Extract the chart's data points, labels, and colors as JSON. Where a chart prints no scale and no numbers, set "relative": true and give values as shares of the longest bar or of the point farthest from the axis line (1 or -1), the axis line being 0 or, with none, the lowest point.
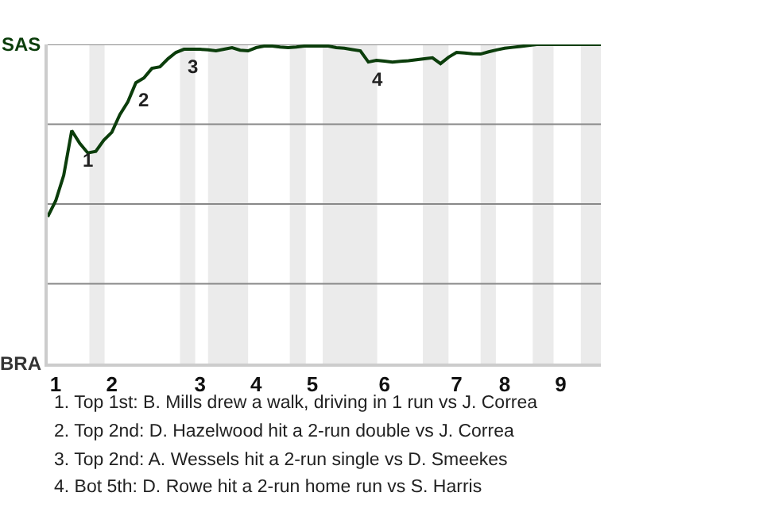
{
  "chart_data": {
    "type": "line",
    "relative": true,
    "categories": [
      null,
      "1",
      null,
      null,
      null,
      null,
      null,
      null,
      "2",
      null,
      null,
      null,
      null,
      null,
      null,
      null,
      null,
      null,
      null,
      "3",
      null,
      null,
      null,
      null,
      null,
      null,
      "4",
      null,
      null,
      null,
      null,
      null,
      null,
      "5",
      null,
      null,
      null,
      null,
      null,
      null,
      null,
      null,
      "6",
      null,
      null,
      null,
      null,
      null,
      null,
      null,
      null,
      "7",
      null,
      null,
      null,
      null,
      null,
      "8",
      null,
      null,
      null,
      null,
      null,
      null,
      "9",
      null,
      null,
      null,
      null,
      null
    ],
    "series": [
      {
        "color": "#0b3d0b",
        "values": [
          0.46,
          0.51,
          0.59,
          0.73,
          0.69,
          0.66,
          0.665,
          0.7,
          0.725,
          0.78,
          0.82,
          0.88,
          0.895,
          0.925,
          0.93,
          0.955,
          0.975,
          0.985,
          0.985,
          0.985,
          0.983,
          0.98,
          0.985,
          0.99,
          0.982,
          0.98,
          0.99,
          0.995,
          0.995,
          0.992,
          0.99,
          0.992,
          0.995,
          0.995,
          0.995,
          0.995,
          0.99,
          0.988,
          0.984,
          0.98,
          0.945,
          0.95,
          0.948,
          0.945,
          0.947,
          0.949,
          0.952,
          0.955,
          0.958,
          0.94,
          0.96,
          0.975,
          0.973,
          0.971,
          0.97,
          0.977,
          0.983,
          0.988,
          0.991,
          0.994,
          0.997,
          1,
          1,
          1,
          1,
          1,
          1,
          1,
          1,
          1
        ]
      }
    ],
    "marker": "none",
    "line_style": "solid",
    "ref_lines": [
      {
        "axis": "y",
        "value": 0.25,
        "color": "#888888"
      },
      {
        "axis": "y",
        "value": 0.5,
        "color": "#888888"
      },
      {
        "axis": "y",
        "value": 0.75,
        "color": "#888888"
      },
      {
        "axis": "y",
        "value": 1,
        "color": "#888888"
      }
    ],
    "annotations": [
      {
        "text": "1",
        "y": 0.69
      },
      {
        "text": "2",
        "y": 0.88
      },
      {
        "text": "3",
        "y": 0.985
      },
      {
        "text": "4",
        "y": 0.945
      },
      "SAS",
      "BRA",
      "1. Top 1st: B. Mills drew a walk, driving in 1 run vs J. Correa",
      "2. Top 2nd: D. Hazelwood hit a 2-run double vs J. Correa",
      "3. Top 2nd: A. Wessels hit a 2-run single vs D. Smeekes",
      "4. Bot 5th: D. Rowe hit a 2-run home run vs S. Harris"
    ]
  }
}
